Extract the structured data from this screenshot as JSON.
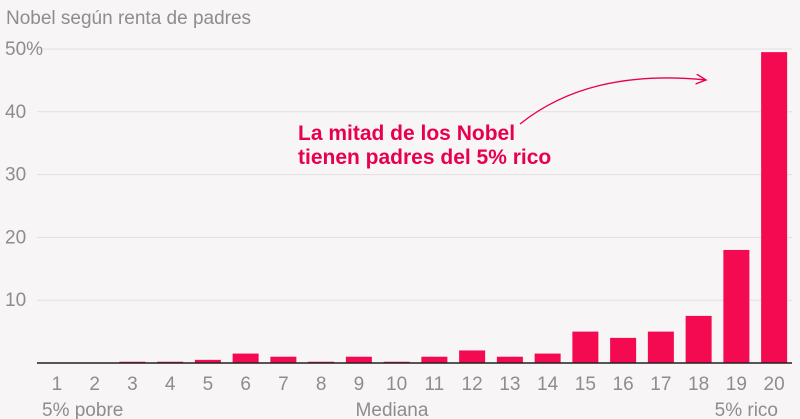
{
  "chart_data": {
    "type": "bar",
    "title": "Nobel según renta de padres",
    "categories": [
      "1",
      "2",
      "3",
      "4",
      "5",
      "6",
      "7",
      "8",
      "9",
      "10",
      "11",
      "12",
      "13",
      "14",
      "15",
      "16",
      "17",
      "18",
      "19",
      "20"
    ],
    "values": [
      0,
      0,
      0.2,
      0.2,
      0.5,
      1.5,
      1,
      0.2,
      1,
      0.2,
      1,
      2,
      1,
      1.5,
      5,
      4,
      5,
      7.5,
      18,
      49.5
    ],
    "ylim": [
      0,
      50
    ],
    "yticks": [
      "10",
      "20",
      "30",
      "40",
      "50%"
    ],
    "ytick_values": [
      10,
      20,
      30,
      40,
      50
    ],
    "grid": true,
    "x_group_labels": {
      "left": "5% pobre",
      "center": "Mediana",
      "right": "5% rico"
    },
    "annotation": {
      "line1": "La mitad de los Nobel",
      "line2": "tienen padres del 5% rico"
    },
    "colors": {
      "bar": "#f40a50",
      "annotation": "#e8004f",
      "grid": "#e2dfe1",
      "text": "#8d8d8d",
      "axis": "#222222"
    }
  }
}
